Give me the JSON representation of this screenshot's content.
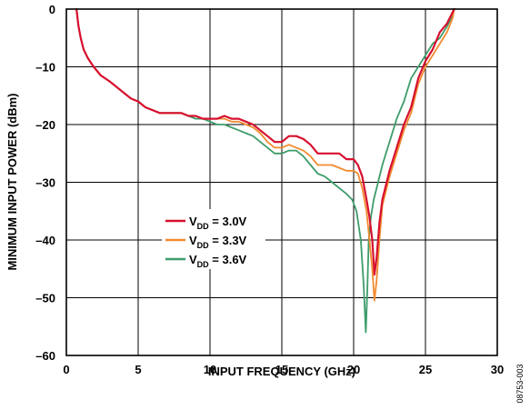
{
  "chart_data": {
    "type": "line",
    "xlabel": "INPUT FREQUENCY (GHz)",
    "ylabel": "MINIMUM INPUT POWER (dBm)",
    "xlim": [
      0,
      30
    ],
    "ylim": [
      -60,
      0
    ],
    "xticks": [
      0,
      5,
      10,
      15,
      20,
      25,
      30
    ],
    "yticks": [
      0,
      -10,
      -20,
      -30,
      -40,
      -50,
      -60
    ],
    "xtick_labels": [
      "0",
      "5",
      "10",
      "15",
      "20",
      "25",
      "30"
    ],
    "ytick_labels": [
      "0",
      "–10",
      "–20",
      "–30",
      "–40",
      "–50",
      "–60"
    ],
    "grid": true,
    "legend_position": "center-left",
    "figure_id": "08753-003",
    "series": [
      {
        "name": "VDD = 3.0V",
        "legend_main": "V",
        "legend_sub": "DD",
        "legend_rest": " = 3.0V",
        "color": "#d7102f",
        "x": [
          0.7,
          0.85,
          1.0,
          1.2,
          1.5,
          1.9,
          2.4,
          3.0,
          3.5,
          4.0,
          4.5,
          5.0,
          5.5,
          6.0,
          6.5,
          7.0,
          7.5,
          8.0,
          8.5,
          9.0,
          9.5,
          10.0,
          10.5,
          11.0,
          11.5,
          12.0,
          12.5,
          13.0,
          13.5,
          14.0,
          14.5,
          15.0,
          15.5,
          16.0,
          16.5,
          17.0,
          17.5,
          18.0,
          18.5,
          19.0,
          19.5,
          20.0,
          20.3,
          20.6,
          20.9,
          21.1,
          21.3,
          21.45,
          21.6,
          21.8,
          22.0,
          22.5,
          23.0,
          23.5,
          24.0,
          24.5,
          25.0,
          25.5,
          26.0,
          26.5,
          26.9,
          27.0
        ],
        "y": [
          0,
          -3,
          -5,
          -7,
          -8.5,
          -10,
          -11.5,
          -12.5,
          -13.5,
          -14.5,
          -15.5,
          -16,
          -17,
          -17.5,
          -18,
          -18,
          -18,
          -18,
          -18.5,
          -18.5,
          -19,
          -19,
          -19,
          -18.5,
          -19,
          -19,
          -19.5,
          -20,
          -21,
          -22,
          -23,
          -23,
          -22,
          -22,
          -22.5,
          -23.5,
          -25,
          -25,
          -25,
          -25,
          -26,
          -26,
          -27,
          -29,
          -33,
          -36,
          -40,
          -46,
          -43,
          -37,
          -33,
          -28,
          -24,
          -20,
          -17,
          -12,
          -9,
          -7,
          -4,
          -2.5,
          -0.5,
          0
        ]
      },
      {
        "name": "VDD = 3.3V",
        "legend_main": "V",
        "legend_sub": "DD",
        "legend_rest": " = 3.3V",
        "color": "#f28a30",
        "x": [
          0.7,
          0.85,
          1.0,
          1.2,
          1.5,
          1.9,
          2.4,
          3.0,
          3.5,
          4.0,
          4.5,
          5.0,
          5.5,
          6.0,
          6.5,
          7.0,
          7.5,
          8.0,
          8.5,
          9.0,
          9.5,
          10.0,
          10.5,
          11.0,
          11.5,
          12.0,
          12.5,
          13.0,
          13.5,
          14.0,
          14.5,
          15.0,
          15.5,
          16.0,
          16.5,
          17.0,
          17.5,
          18.0,
          18.5,
          19.0,
          19.5,
          20.0,
          20.3,
          20.6,
          20.9,
          21.1,
          21.3,
          21.45,
          21.6,
          21.8,
          22.0,
          22.5,
          23.0,
          23.5,
          24.0,
          24.5,
          25.0,
          25.5,
          26.0,
          26.5,
          26.9,
          27.0
        ],
        "y": [
          0,
          -3,
          -5,
          -7,
          -8.5,
          -10,
          -11.5,
          -12.5,
          -13.5,
          -14.5,
          -15.5,
          -16,
          -17,
          -17.5,
          -18,
          -18,
          -18,
          -18,
          -18.5,
          -18.5,
          -19,
          -19,
          -19,
          -19,
          -19.5,
          -19.5,
          -20,
          -20.5,
          -21.5,
          -23,
          -24,
          -24,
          -23.5,
          -24,
          -24.5,
          -25.5,
          -27,
          -27,
          -27,
          -27.5,
          -28,
          -28,
          -28.5,
          -31,
          -35,
          -40,
          -45,
          -50.5,
          -47,
          -40,
          -34,
          -29,
          -25,
          -21,
          -18,
          -13,
          -10,
          -8,
          -6,
          -4,
          -1.5,
          0
        ]
      },
      {
        "name": "VDD = 3.6V",
        "legend_main": "V",
        "legend_sub": "DD",
        "legend_rest": " = 3.6V",
        "color": "#3d9c6a",
        "x": [
          0.7,
          0.85,
          1.0,
          1.2,
          1.5,
          1.9,
          2.4,
          3.0,
          3.5,
          4.0,
          4.5,
          5.0,
          5.5,
          6.0,
          6.5,
          7.0,
          7.5,
          8.0,
          8.5,
          9.0,
          9.5,
          10.0,
          10.5,
          11.0,
          11.5,
          12.0,
          12.5,
          13.0,
          13.5,
          14.0,
          14.5,
          15.0,
          15.5,
          16.0,
          16.5,
          17.0,
          17.5,
          18.0,
          18.5,
          19.0,
          19.5,
          19.9,
          20.2,
          20.5,
          20.7,
          20.85,
          20.95,
          21.05,
          21.2,
          21.4,
          21.7,
          22.0,
          22.5,
          23.0,
          23.5,
          24.0,
          24.5,
          25.0,
          25.5,
          26.0,
          26.5,
          26.9,
          27.0
        ],
        "y": [
          0,
          -3,
          -5,
          -7,
          -8.5,
          -10,
          -11.5,
          -12.5,
          -13.5,
          -14.5,
          -15.5,
          -16,
          -17,
          -17.5,
          -18,
          -18,
          -18,
          -18,
          -18.5,
          -19,
          -19,
          -19.5,
          -20,
          -20,
          -20.5,
          -21,
          -21.5,
          -22,
          -23,
          -24,
          -25,
          -25,
          -24.5,
          -24.5,
          -25.5,
          -27,
          -28.5,
          -29,
          -30,
          -31,
          -32,
          -33,
          -35,
          -40,
          -48,
          -56,
          -49,
          -40,
          -36,
          -33,
          -30,
          -27,
          -23,
          -19,
          -16,
          -12,
          -10,
          -8,
          -6,
          -5,
          -3,
          -1,
          0
        ]
      }
    ]
  }
}
